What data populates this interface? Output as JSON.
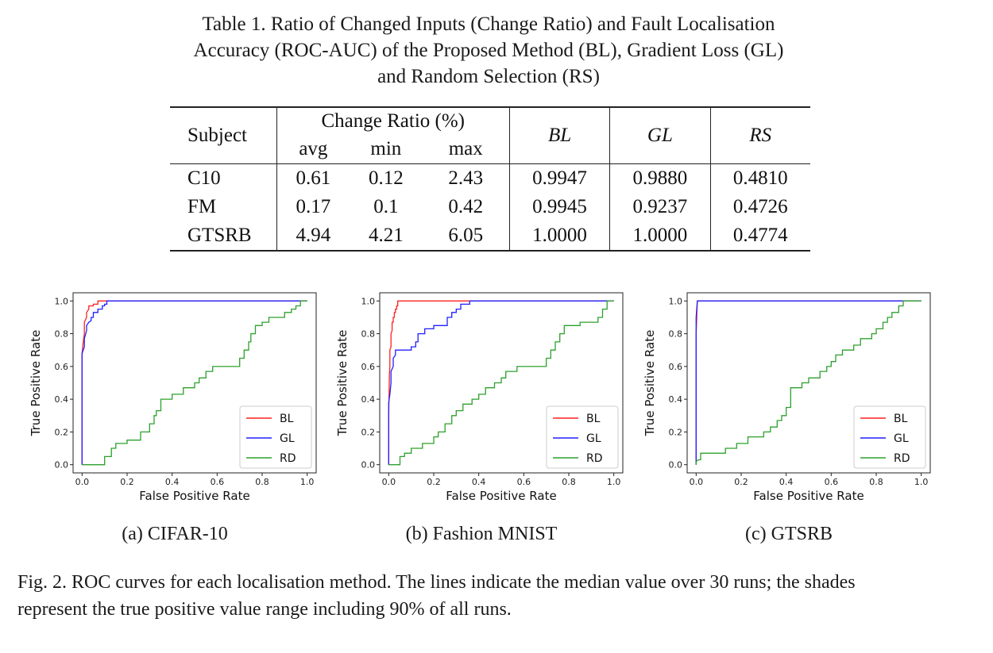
{
  "table": {
    "caption_line1": "Table 1.  Ratio of Changed Inputs (Change Ratio) and Fault Localisation",
    "caption_line2": "Accuracy (ROC-AUC) of the Proposed Method (BL), Gradient Loss (GL)",
    "caption_line3": "and Random Selection (RS)",
    "header": {
      "subject": "Subject",
      "change_ratio": "Change Ratio (%)",
      "avg": "avg",
      "min": "min",
      "max": "max",
      "bl": "BL",
      "gl": "GL",
      "rs": "RS"
    },
    "rows": [
      {
        "subject": "C10",
        "avg": "0.61",
        "min": "0.12",
        "max": "2.43",
        "bl": "0.9947",
        "gl": "0.9880",
        "rs": "0.4810"
      },
      {
        "subject": "FM",
        "avg": "0.17",
        "min": "0.1",
        "max": "0.42",
        "bl": "0.9945",
        "gl": "0.9237",
        "rs": "0.4726"
      },
      {
        "subject": "GTSRB",
        "avg": "4.94",
        "min": "4.21",
        "max": "6.05",
        "bl": "1.0000",
        "gl": "1.0000",
        "rs": "0.4774"
      }
    ]
  },
  "figure": {
    "subcaptions": [
      "(a) CIFAR-10",
      "(b) Fashion MNIST",
      "(c) GTSRB"
    ],
    "caption_line1": "Fig. 2.  ROC curves for each localisation method. The lines indicate the median value over 30 runs; the shades",
    "caption_line2": "represent the true positive value range including 90% of all runs."
  },
  "chart_data": [
    {
      "type": "line",
      "xlabel": "False Positive Rate",
      "ylabel": "True Positive Rate",
      "xlim": [
        -0.04,
        1.04
      ],
      "ylim": [
        -0.05,
        1.05
      ],
      "xticks": [
        "0.0",
        "0.2",
        "0.4",
        "0.6",
        "0.8",
        "1.0"
      ],
      "yticks": [
        "0.0",
        "0.2",
        "0.4",
        "0.6",
        "0.8",
        "1.0"
      ],
      "legend_position": "lower-right",
      "series": [
        {
          "name": "BL",
          "color": "#ff2020",
          "x": [
            0,
            0,
            0.005,
            0.01,
            0.01,
            0.02,
            0.02,
            0.03,
            0.03,
            0.05,
            0.05,
            0.07,
            0.07,
            1.0
          ],
          "y": [
            0,
            0.68,
            0.75,
            0.8,
            0.87,
            0.9,
            0.93,
            0.95,
            0.97,
            0.97,
            0.98,
            0.98,
            1.0,
            1.0
          ]
        },
        {
          "name": "GL",
          "color": "#2020ff",
          "x": [
            0,
            0,
            0.01,
            0.01,
            0.02,
            0.02,
            0.03,
            0.04,
            0.04,
            0.05,
            0.05,
            0.07,
            0.07,
            0.09,
            0.09,
            0.1,
            0.1,
            0.11,
            0.11,
            0.98,
            1.0
          ],
          "y": [
            0,
            0.68,
            0.72,
            0.77,
            0.82,
            0.85,
            0.87,
            0.88,
            0.9,
            0.9,
            0.93,
            0.93,
            0.95,
            0.95,
            0.97,
            0.97,
            0.98,
            0.98,
            1.0,
            1.0,
            1.0
          ]
        },
        {
          "name": "RD",
          "color": "#2ca02c",
          "x": [
            0,
            0.1,
            0.1,
            0.13,
            0.13,
            0.15,
            0.15,
            0.2,
            0.2,
            0.26,
            0.26,
            0.3,
            0.3,
            0.32,
            0.32,
            0.33,
            0.33,
            0.35,
            0.35,
            0.4,
            0.4,
            0.45,
            0.45,
            0.5,
            0.5,
            0.52,
            0.52,
            0.55,
            0.55,
            0.58,
            0.58,
            0.62,
            0.62,
            0.7,
            0.7,
            0.72,
            0.72,
            0.74,
            0.74,
            0.75,
            0.75,
            0.77,
            0.77,
            0.8,
            0.8,
            0.83,
            0.83,
            0.9,
            0.9,
            0.93,
            0.93,
            0.95,
            0.95,
            0.97,
            0.97,
            1.0
          ],
          "y": [
            0,
            0,
            0.05,
            0.05,
            0.1,
            0.1,
            0.13,
            0.13,
            0.15,
            0.15,
            0.2,
            0.2,
            0.25,
            0.25,
            0.3,
            0.3,
            0.33,
            0.33,
            0.4,
            0.4,
            0.43,
            0.43,
            0.47,
            0.47,
            0.5,
            0.5,
            0.53,
            0.53,
            0.57,
            0.57,
            0.6,
            0.6,
            0.6,
            0.6,
            0.65,
            0.65,
            0.7,
            0.7,
            0.75,
            0.75,
            0.8,
            0.8,
            0.85,
            0.85,
            0.87,
            0.87,
            0.9,
            0.9,
            0.93,
            0.93,
            0.95,
            0.95,
            0.97,
            0.97,
            1.0,
            1.0
          ]
        }
      ]
    },
    {
      "type": "line",
      "xlabel": "False Positive Rate",
      "ylabel": "True Positive Rate",
      "xlim": [
        -0.04,
        1.04
      ],
      "ylim": [
        -0.05,
        1.05
      ],
      "xticks": [
        "0.0",
        "0.2",
        "0.4",
        "0.6",
        "0.8",
        "1.0"
      ],
      "yticks": [
        "0.0",
        "0.2",
        "0.4",
        "0.6",
        "0.8",
        "1.0"
      ],
      "legend_position": "lower-right",
      "series": [
        {
          "name": "BL",
          "color": "#ff2020",
          "x": [
            0,
            0,
            0.003,
            0.005,
            0.005,
            0.01,
            0.01,
            0.015,
            0.015,
            0.02,
            0.02,
            0.025,
            0.025,
            0.03,
            0.03,
            0.035,
            0.035,
            0.04,
            0.04,
            1.0
          ],
          "y": [
            0,
            0.3,
            0.55,
            0.6,
            0.7,
            0.72,
            0.8,
            0.82,
            0.87,
            0.87,
            0.9,
            0.9,
            0.93,
            0.93,
            0.95,
            0.95,
            0.97,
            0.97,
            1.0,
            1.0
          ]
        },
        {
          "name": "GL",
          "color": "#2020ff",
          "x": [
            0,
            0,
            0.005,
            0.01,
            0.01,
            0.02,
            0.02,
            0.03,
            0.03,
            0.05,
            0.05,
            0.1,
            0.1,
            0.12,
            0.12,
            0.13,
            0.13,
            0.16,
            0.16,
            0.2,
            0.2,
            0.26,
            0.26,
            0.28,
            0.28,
            0.3,
            0.3,
            0.32,
            0.32,
            0.36,
            0.36,
            0.96,
            1.0
          ],
          "y": [
            0,
            0.38,
            0.43,
            0.5,
            0.57,
            0.6,
            0.65,
            0.67,
            0.7,
            0.7,
            0.7,
            0.7,
            0.72,
            0.72,
            0.75,
            0.75,
            0.8,
            0.8,
            0.83,
            0.83,
            0.85,
            0.85,
            0.9,
            0.9,
            0.93,
            0.93,
            0.95,
            0.95,
            0.98,
            0.98,
            1.0,
            1.0,
            1.0
          ]
        },
        {
          "name": "RD",
          "color": "#2ca02c",
          "x": [
            0,
            0.05,
            0.05,
            0.07,
            0.07,
            0.1,
            0.1,
            0.15,
            0.15,
            0.2,
            0.2,
            0.22,
            0.22,
            0.25,
            0.25,
            0.28,
            0.28,
            0.3,
            0.3,
            0.33,
            0.33,
            0.37,
            0.37,
            0.4,
            0.4,
            0.43,
            0.43,
            0.47,
            0.47,
            0.5,
            0.5,
            0.52,
            0.52,
            0.57,
            0.57,
            0.65,
            0.65,
            0.7,
            0.7,
            0.72,
            0.72,
            0.74,
            0.74,
            0.76,
            0.76,
            0.78,
            0.78,
            0.85,
            0.85,
            0.93,
            0.93,
            0.95,
            0.95,
            0.97,
            0.97,
            1.0
          ],
          "y": [
            0,
            0,
            0.05,
            0.05,
            0.07,
            0.07,
            0.1,
            0.1,
            0.13,
            0.13,
            0.17,
            0.17,
            0.2,
            0.2,
            0.25,
            0.25,
            0.3,
            0.3,
            0.33,
            0.33,
            0.37,
            0.37,
            0.4,
            0.4,
            0.43,
            0.43,
            0.47,
            0.47,
            0.5,
            0.5,
            0.53,
            0.53,
            0.57,
            0.57,
            0.6,
            0.6,
            0.6,
            0.6,
            0.65,
            0.65,
            0.7,
            0.7,
            0.75,
            0.75,
            0.8,
            0.8,
            0.85,
            0.85,
            0.87,
            0.87,
            0.9,
            0.9,
            0.95,
            0.95,
            1.0,
            1.0
          ]
        }
      ]
    },
    {
      "type": "line",
      "xlabel": "False Positive Rate",
      "ylabel": "True Positive Rate",
      "xlim": [
        -0.04,
        1.04
      ],
      "ylim": [
        -0.05,
        1.05
      ],
      "xticks": [
        "0.0",
        "0.2",
        "0.4",
        "0.6",
        "0.8",
        "1.0"
      ],
      "yticks": [
        "0.0",
        "0.2",
        "0.4",
        "0.6",
        "0.8",
        "1.0"
      ],
      "legend_position": "lower-right",
      "series": [
        {
          "name": "BL",
          "color": "#ff2020",
          "x": [
            0,
            0,
            0.005,
            1.0
          ],
          "y": [
            0,
            0.8,
            1.0,
            1.0
          ]
        },
        {
          "name": "GL",
          "color": "#2020ff",
          "x": [
            0,
            0,
            0.005,
            0.96,
            1.0
          ],
          "y": [
            0,
            0.9,
            1.0,
            1.0,
            1.0
          ]
        },
        {
          "name": "RD",
          "color": "#2ca02c",
          "x": [
            0,
            0,
            0.01,
            0.02,
            0.02,
            0.13,
            0.13,
            0.18,
            0.18,
            0.23,
            0.23,
            0.3,
            0.3,
            0.33,
            0.33,
            0.36,
            0.36,
            0.38,
            0.38,
            0.4,
            0.4,
            0.42,
            0.42,
            0.47,
            0.47,
            0.5,
            0.5,
            0.55,
            0.55,
            0.58,
            0.58,
            0.6,
            0.6,
            0.62,
            0.62,
            0.65,
            0.65,
            0.7,
            0.7,
            0.73,
            0.73,
            0.78,
            0.78,
            0.8,
            0.8,
            0.83,
            0.83,
            0.85,
            0.85,
            0.87,
            0.87,
            0.9,
            0.9,
            0.92,
            0.92,
            1.0
          ],
          "y": [
            0,
            0.02,
            0.03,
            0.03,
            0.07,
            0.07,
            0.1,
            0.1,
            0.13,
            0.13,
            0.17,
            0.17,
            0.2,
            0.2,
            0.23,
            0.23,
            0.27,
            0.27,
            0.3,
            0.3,
            0.35,
            0.35,
            0.47,
            0.47,
            0.5,
            0.5,
            0.53,
            0.53,
            0.57,
            0.57,
            0.6,
            0.6,
            0.63,
            0.63,
            0.67,
            0.67,
            0.7,
            0.7,
            0.73,
            0.73,
            0.77,
            0.77,
            0.8,
            0.8,
            0.83,
            0.83,
            0.87,
            0.87,
            0.9,
            0.9,
            0.93,
            0.93,
            0.97,
            0.97,
            1.0,
            1.0
          ]
        }
      ]
    }
  ]
}
